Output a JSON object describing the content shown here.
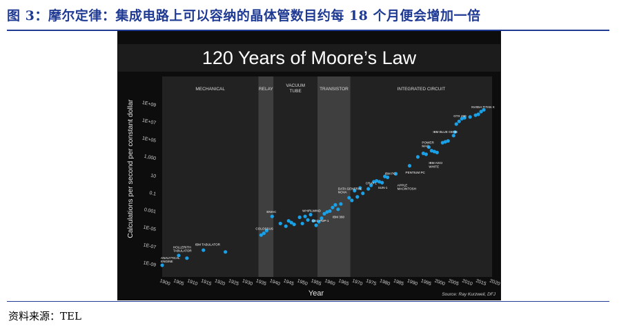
{
  "figure_title": "图 3：摩尔定律：集成电路上可以容纳的晶体管数目约每 18 个月便会增加一倍",
  "source_note": "资料来源：TEL",
  "chart_data": {
    "type": "scatter",
    "title": "120 Years of Moore’s Law",
    "xlabel": "Year",
    "ylabel": "Calculations per second per constant dollar",
    "credit": "Source: Ray Kurzweil, DFJ",
    "y_scale": "log",
    "xlim": [
      1900,
      2020
    ],
    "ylim": [
      -9,
      9
    ],
    "x_ticks": [
      1900,
      1905,
      1910,
      1915,
      1920,
      1925,
      1930,
      1935,
      1940,
      1945,
      1950,
      1955,
      1960,
      1965,
      1970,
      1975,
      1980,
      1985,
      1990,
      1995,
      2000,
      2005,
      2010,
      2015,
      2020
    ],
    "y_ticks": [
      {
        "exp": 9,
        "label": "1E+09"
      },
      {
        "exp": 7,
        "label": "1E+07"
      },
      {
        "exp": 5,
        "label": "1E+05"
      },
      {
        "exp": 3,
        "label": "1,000"
      },
      {
        "exp": 1,
        "label": "10"
      },
      {
        "exp": -1,
        "label": "0.1"
      },
      {
        "exp": -3,
        "label": "0.001"
      },
      {
        "exp": -5,
        "label": "1E-05"
      },
      {
        "exp": -7,
        "label": "1E-07"
      },
      {
        "exp": -9,
        "label": "1E-09"
      }
    ],
    "eras": [
      {
        "label": "MECHANICAL",
        "start": 1900,
        "end": 1935,
        "shade": "#222222"
      },
      {
        "label": "RELAY",
        "start": 1935,
        "end": 1940.5,
        "shade": "#3f3f3f"
      },
      {
        "label": "VACUUM\nTUBE",
        "start": 1940.5,
        "end": 1956.5,
        "shade": "#222222"
      },
      {
        "label": "TRANSISTOR",
        "start": 1956.5,
        "end": 1968.5,
        "shade": "#3f3f3f"
      },
      {
        "label": "INTEGRATED CIRCUIT",
        "start": 1968.5,
        "end": 2020,
        "shade": "#222222"
      }
    ],
    "points": [
      [
        1900,
        -9.0
      ],
      [
        1906,
        -7.9
      ],
      [
        1909,
        -8.2
      ],
      [
        1915,
        -7.3
      ],
      [
        1923,
        -7.5
      ],
      [
        1936,
        -5.6
      ],
      [
        1937,
        -5.4
      ],
      [
        1938,
        -5.1
      ],
      [
        1940,
        -3.5
      ],
      [
        1943,
        -4.3
      ],
      [
        1945,
        -4.6
      ],
      [
        1946,
        -4.0
      ],
      [
        1947,
        -4.2
      ],
      [
        1948,
        -4.4
      ],
      [
        1950,
        -3.6
      ],
      [
        1951,
        -4.3
      ],
      [
        1952,
        -3.5
      ],
      [
        1953,
        -3.9
      ],
      [
        1954,
        -3.3
      ],
      [
        1955,
        -4.0
      ],
      [
        1956,
        -4.5
      ],
      [
        1957,
        -4.1
      ],
      [
        1958,
        -3.7
      ],
      [
        1959,
        -3.2
      ],
      [
        1960,
        -3.0
      ],
      [
        1961,
        -2.9
      ],
      [
        1962,
        -2.5
      ],
      [
        1963,
        -2.2
      ],
      [
        1964,
        -2.7
      ],
      [
        1965,
        -2.1
      ],
      [
        1968,
        -1.4
      ],
      [
        1969,
        -1.7
      ],
      [
        1970,
        -0.6
      ],
      [
        1971,
        -1.3
      ],
      [
        1972,
        -0.3
      ],
      [
        1973,
        -0.9
      ],
      [
        1975,
        -0.4
      ],
      [
        1976,
        0.0
      ],
      [
        1977,
        0.4
      ],
      [
        1978,
        0.5
      ],
      [
        1979,
        0.4
      ],
      [
        1980,
        0.3
      ],
      [
        1981,
        1.0
      ],
      [
        1982,
        0.9
      ],
      [
        1985,
        1.3
      ],
      [
        1990,
        2.2
      ],
      [
        1993,
        3.2
      ],
      [
        1995,
        3.6
      ],
      [
        1996,
        3.5
      ],
      [
        1997,
        4.3
      ],
      [
        1998,
        3.9
      ],
      [
        1999,
        3.8
      ],
      [
        2000,
        3.7
      ],
      [
        2002,
        4.8
      ],
      [
        2003,
        4.9
      ],
      [
        2004,
        5.0
      ],
      [
        2006,
        5.6
      ],
      [
        2006.5,
        6.0
      ],
      [
        2007,
        6.9
      ],
      [
        2008,
        7.2
      ],
      [
        2009,
        7.5
      ],
      [
        2010,
        7.6
      ],
      [
        2012,
        7.7
      ],
      [
        2014,
        7.9
      ],
      [
        2015,
        8.0
      ],
      [
        2016,
        8.3
      ],
      [
        2017,
        8.5
      ]
    ],
    "annotations": [
      {
        "text": "ANALYTICAL\nENGINE",
        "x": 1899.5,
        "y": -8.3
      },
      {
        "text": "HOLLERITH\nTABULATOR",
        "x": 1904,
        "y": -7.1
      },
      {
        "text": "IBM TABULATOR",
        "x": 1912,
        "y": -6.8
      },
      {
        "text": "ENIAC",
        "x": 1938,
        "y": -3.1
      },
      {
        "text": "COLOSSUS",
        "x": 1934,
        "y": -5.0
      },
      {
        "text": "WHIRLWIND",
        "x": 1951,
        "y": -3.0
      },
      {
        "text": "DEC PDP-1",
        "x": 1954.5,
        "y": -4.1
      },
      {
        "text": "IBM 360",
        "x": 1962,
        "y": -3.7
      },
      {
        "text": "DATA GENERAL\nNOVA",
        "x": 1964,
        "y": -0.5
      },
      {
        "text": "CRAY 1",
        "x": 1974,
        "y": 0.1
      },
      {
        "text": "SUN-1",
        "x": 1978.5,
        "y": -0.4
      },
      {
        "text": "IBM PC",
        "x": 1981,
        "y": 1.2
      },
      {
        "text": "APPLE\nMACINTOSH",
        "x": 1985.5,
        "y": -0.1
      },
      {
        "text": "PENTIUM PC",
        "x": 1988.5,
        "y": 1.3
      },
      {
        "text": "POWER\nMAC",
        "x": 1994.5,
        "y": 4.7
      },
      {
        "text": "IBM ASCI\nWHITE",
        "x": 1997,
        "y": 2.4
      },
      {
        "text": "IBM BLUE GENE",
        "x": 1998.5,
        "y": 5.9
      },
      {
        "text": "GTX 480",
        "x": 2006,
        "y": 7.7
      },
      {
        "text": "NVIDIA TITAN X",
        "x": 2012.5,
        "y": 8.7
      }
    ],
    "marker_color": "#1aa0e6",
    "background": "#0d0d0d"
  }
}
